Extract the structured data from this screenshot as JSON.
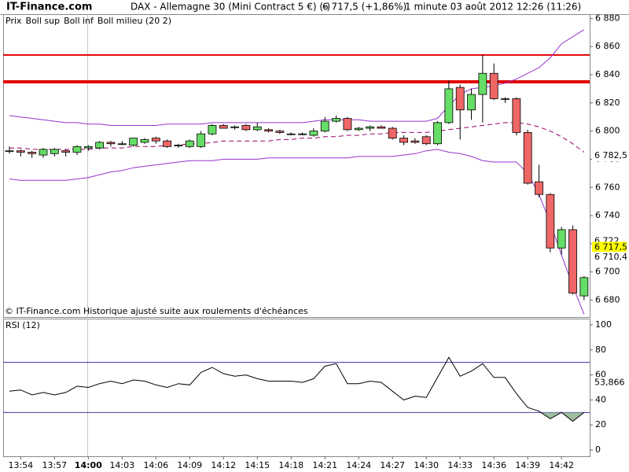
{
  "chart_data": [
    {
      "type": "candlestick",
      "source": "IT-Finance.com",
      "title": "DAX - Allemagne 30 (Mini Contract 5 €) (-)",
      "price_info": "6 717,5 (+1,86%)",
      "period_info": "1 minute  03 août 2012 12:26 (11:26)",
      "note": "© IT-Finance.com  Historique ajusté suite aux roulements d'échéances",
      "name": "Prix",
      "categories": [
        null,
        "13:54",
        null,
        null,
        "13:57",
        null,
        null,
        "14:00",
        null,
        null,
        "14:03",
        null,
        null,
        "14:06",
        null,
        null,
        "14:09",
        null,
        null,
        "14:12",
        null,
        null,
        "14:15",
        null,
        null,
        "14:18",
        null,
        null,
        "14:21",
        null,
        null,
        "14:24",
        null,
        null,
        "14:27",
        null,
        null,
        "14:30",
        null,
        null,
        "14:33",
        null,
        null,
        "14:36",
        null,
        null,
        "14:39",
        null,
        null,
        "14:42",
        null,
        null
      ],
      "open": [
        6786,
        6786,
        6785,
        6783,
        6784,
        6786,
        6785,
        6788,
        6788,
        6792,
        6791,
        6790,
        6792,
        6795,
        6793,
        6790,
        6789,
        6789,
        6798,
        6804,
        6803,
        6804,
        6801,
        6801,
        6800,
        6798,
        6798,
        6797,
        6800,
        6807,
        6809,
        6801,
        6802,
        6803,
        6802,
        6795,
        6793,
        6796,
        6791,
        6806,
        6831,
        6815,
        6826,
        6841,
        6823,
        6823,
        6799,
        6764,
        6755,
        6717,
        6730,
        6683
      ],
      "high": [
        6789,
        6787,
        6786,
        6788,
        6788,
        6787,
        6790,
        6790,
        6793,
        6793,
        6793,
        6795,
        6795,
        6796,
        6794,
        6791,
        6794,
        6800,
        6805,
        6805,
        6804,
        6805,
        6806,
        6802,
        6801,
        6799,
        6799,
        6802,
        6810,
        6811,
        6810,
        6803,
        6804,
        6804,
        6803,
        6797,
        6795,
        6797,
        6807,
        6836,
        6833,
        6830,
        6854,
        6848,
        6824,
        6824,
        6801,
        6776,
        6756,
        6732,
        6733,
        6697
      ],
      "low": [
        6784,
        6782,
        6781,
        6781,
        6782,
        6782,
        6783,
        6786,
        6787,
        6789,
        6790,
        6789,
        6791,
        6791,
        6788,
        6788,
        6788,
        6788,
        6797,
        6802,
        6801,
        6800,
        6800,
        6799,
        6798,
        6797,
        6797,
        6796,
        6799,
        6806,
        6800,
        6800,
        6800,
        6802,
        6794,
        6790,
        6791,
        6790,
        6790,
        6805,
        6794,
        6808,
        6806,
        6822,
        6820,
        6797,
        6762,
        6753,
        6714,
        6712,
        6684,
        6680
      ],
      "close": [
        6786,
        6785,
        6784,
        6787,
        6787,
        6785,
        6789,
        6789,
        6792,
        6791,
        6791,
        6795,
        6794,
        6793,
        6789,
        6790,
        6793,
        6798,
        6804,
        6802,
        6803,
        6801,
        6803,
        6800,
        6799,
        6798,
        6798,
        6800,
        6807,
        6809,
        6801,
        6802,
        6803,
        6802,
        6795,
        6792,
        6792,
        6791,
        6806,
        6830,
        6815,
        6826,
        6841,
        6823,
        6823,
        6799,
        6763,
        6755,
        6717,
        6730,
        6685,
        6696
      ],
      "up_color": "#66dd66",
      "down_color": "#ee6666",
      "overlays": [
        {
          "name": "Boll sup",
          "color": "#9933cc",
          "values": [
            6811,
            6810,
            6809,
            6808,
            6807,
            6806,
            6806,
            6805,
            6805,
            6804,
            6804,
            6804,
            6804,
            6804,
            6805,
            6805,
            6805,
            6805,
            6806,
            6806,
            6806,
            6806,
            6806,
            6806,
            6806,
            6806,
            6806,
            6807,
            6808,
            6808,
            6808,
            6808,
            6807,
            6807,
            6807,
            6807,
            6807,
            6807,
            6809,
            6818,
            6826,
            6830,
            6831,
            6832,
            6834,
            6837,
            6841,
            6845,
            6852,
            6862,
            6867,
            6872
          ]
        },
        {
          "name": "Boll inf",
          "color": "#9933cc",
          "values": [
            6766,
            6765,
            6765,
            6765,
            6765,
            6765,
            6766,
            6767,
            6769,
            6771,
            6772,
            6774,
            6775,
            6776,
            6777,
            6778,
            6779,
            6779,
            6779,
            6780,
            6780,
            6780,
            6780,
            6781,
            6781,
            6781,
            6781,
            6781,
            6781,
            6781,
            6781,
            6782,
            6782,
            6782,
            6782,
            6783,
            6784,
            6786,
            6787,
            6785,
            6784,
            6782,
            6779,
            6778,
            6778,
            6778,
            6770,
            6755,
            6735,
            6712,
            6690,
            6670
          ]
        },
        {
          "name": "Boll milieu (20 2)",
          "color": "#990066",
          "dashed": true,
          "values": [
            6788,
            6788,
            6787,
            6787,
            6787,
            6787,
            6787,
            6787,
            6788,
            6788,
            6788,
            6789,
            6789,
            6789,
            6790,
            6790,
            6791,
            6791,
            6792,
            6793,
            6793,
            6793,
            6793,
            6793,
            6794,
            6794,
            6795,
            6795,
            6796,
            6796,
            6797,
            6797,
            6798,
            6798,
            6799,
            6799,
            6799,
            6799,
            6800,
            6801,
            6802,
            6803,
            6804,
            6805,
            6806,
            6806,
            6805,
            6803,
            6800,
            6796,
            6791,
            6785
          ]
        }
      ],
      "hlines": [
        {
          "value": 6854,
          "color": "#e00000",
          "width": 2
        },
        {
          "value": 6835,
          "color": "#e00000",
          "width": 4
        }
      ],
      "ylim": [
        6668,
        6883
      ],
      "yticks": [
        {
          "value": 6680,
          "label": "6 680"
        },
        {
          "value": 6700,
          "label": "6 700"
        },
        {
          "value": 6720,
          "label": "6 720"
        },
        {
          "value": 6740,
          "label": "6 740"
        },
        {
          "value": 6760,
          "label": "6 760"
        },
        {
          "value": 6780,
          "label": "6 780"
        },
        {
          "value": 6800,
          "label": "6 800"
        },
        {
          "value": 6820,
          "label": "6 820"
        },
        {
          "value": 6840,
          "label": "6 840"
        },
        {
          "value": 6860,
          "label": "6 860"
        },
        {
          "value": 6880,
          "label": "6 880"
        }
      ],
      "value_tags": [
        {
          "value": 6782.5,
          "label": "6 782,5",
          "color": "#cc0000",
          "bg": "#ffffff"
        },
        {
          "value": 6722,
          "label": "6 722",
          "color": "#999999",
          "bg": "#ffffff"
        },
        {
          "value": 6717.5,
          "label": "6 717,5",
          "color": "#000000",
          "bg": "#ffff00"
        },
        {
          "value": 6710.4,
          "label": "6 710,4",
          "color": "#9933cc",
          "bg": "#ffffff"
        }
      ]
    },
    {
      "type": "line",
      "title": "RSI (12)",
      "color": "#000000",
      "values": [
        47,
        48,
        44,
        46,
        44,
        46,
        51,
        50,
        53,
        55,
        53,
        56,
        55,
        52,
        50,
        53,
        52,
        62,
        66,
        61,
        59,
        60,
        57,
        55,
        55,
        55,
        54,
        57,
        67,
        69,
        53,
        53,
        55,
        54,
        47,
        40,
        43,
        42,
        58,
        74,
        59,
        63,
        69,
        58,
        58,
        45,
        34,
        31,
        25,
        30,
        23,
        30
      ],
      "hlines": [
        {
          "value": 70,
          "color": "#3333aa",
          "width": 1
        },
        {
          "value": 30,
          "color": "#3333aa",
          "width": 1
        }
      ],
      "fill_color": "#9fbf9f",
      "ylim": [
        -5,
        105
      ],
      "yticks": [
        0,
        20,
        40,
        60,
        80,
        100
      ],
      "value_tags": [
        {
          "value": 53.866,
          "label": "53,866",
          "color": "#000000",
          "bg": "#ffffff"
        }
      ]
    }
  ]
}
